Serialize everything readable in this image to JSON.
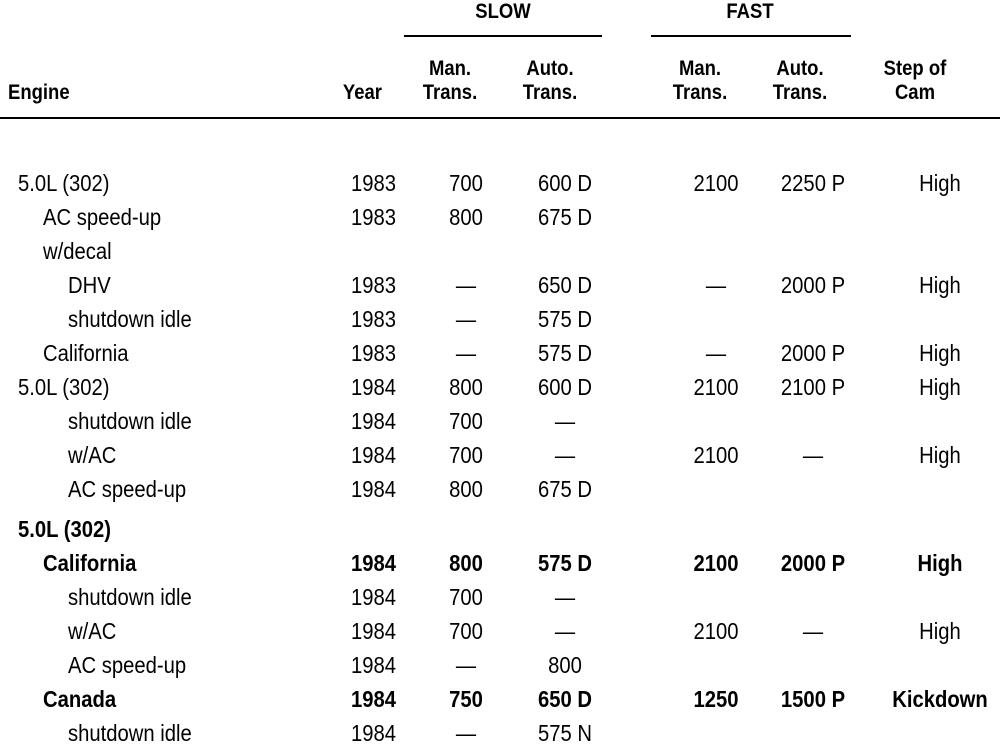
{
  "table": {
    "groups": [
      "SLOW",
      "FAST"
    ],
    "columns": [
      "Engine",
      "Year",
      "Man. Trans.",
      "Auto. Trans.",
      "Man. Trans.",
      "Auto. Trans.",
      "Step of Cam"
    ],
    "rows": [
      [
        "5.0L (302)",
        "1983",
        "700",
        "600 D",
        "2100",
        "2250 P",
        "High"
      ],
      [
        "AC speed-up",
        "1983",
        "800",
        "675 D",
        null,
        null,
        null
      ],
      [
        "w/decal",
        null,
        null,
        null,
        null,
        null,
        null
      ],
      [
        "DHV",
        "1983",
        "—",
        "650 D",
        "—",
        "2000 P",
        "High"
      ],
      [
        "shutdown idle",
        "1983",
        "—",
        "575 D",
        null,
        null,
        null
      ],
      [
        "California",
        "1983",
        "—",
        "575 D",
        "—",
        "2000 P",
        "High"
      ],
      [
        "5.0L (302)",
        "1984",
        "800",
        "600 D",
        "2100",
        "2100 P",
        "High"
      ],
      [
        "shutdown idle",
        "1984",
        "700",
        "—",
        null,
        null,
        null
      ],
      [
        "w/AC",
        "1984",
        "700",
        "—",
        "2100",
        "—",
        "High"
      ],
      [
        "AC speed-up",
        "1984",
        "800",
        "675 D",
        null,
        null,
        null
      ],
      [
        "5.0L (302)",
        null,
        null,
        null,
        null,
        null,
        null
      ],
      [
        "California",
        "1984",
        "800",
        "575 D",
        "2100",
        "2000 P",
        "High"
      ],
      [
        "shutdown idle",
        "1984",
        "700",
        "—",
        null,
        null,
        null
      ],
      [
        "w/AC",
        "1984",
        "700",
        "—",
        "2100",
        "—",
        "High"
      ],
      [
        "AC speed-up",
        "1984",
        "—",
        "800",
        null,
        null,
        null
      ],
      [
        "Canada",
        "1984",
        "750",
        "650 D",
        "1250",
        "1500 P",
        "Kickdown"
      ],
      [
        "shutdown idle",
        "1984",
        "—",
        "575 N",
        null,
        null,
        null
      ]
    ]
  }
}
